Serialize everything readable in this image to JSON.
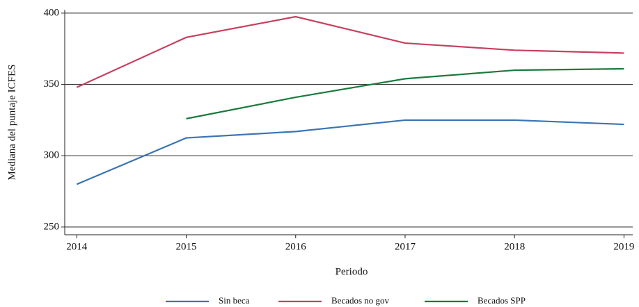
{
  "chart_data": {
    "type": "line",
    "x_label": "Periodo",
    "y_label": "Mediana del puntaje ICFES",
    "x": [
      2014,
      2015,
      2016,
      2017,
      2018,
      2019
    ],
    "series": [
      {
        "name": "Sin beca",
        "color": "#3a74b1",
        "values": [
          280,
          312.5,
          317,
          325,
          325,
          322
        ]
      },
      {
        "name": "Becados no gov",
        "color": "#c6405f",
        "values": [
          348,
          383,
          397.5,
          379,
          374,
          372
        ]
      },
      {
        "name": "Becados SPP",
        "color": "#1b7a3c",
        "values": [
          null,
          326,
          341,
          354,
          360,
          361
        ]
      }
    ],
    "xlim": [
      2013.89,
      2019.08
    ],
    "xticks": [
      2014,
      2015,
      2016,
      2017,
      2018,
      2019
    ],
    "ylim": [
      244.6,
      402.4
    ],
    "yticks": [
      250,
      300,
      350,
      400
    ],
    "grid": true,
    "legend": "bottom"
  }
}
